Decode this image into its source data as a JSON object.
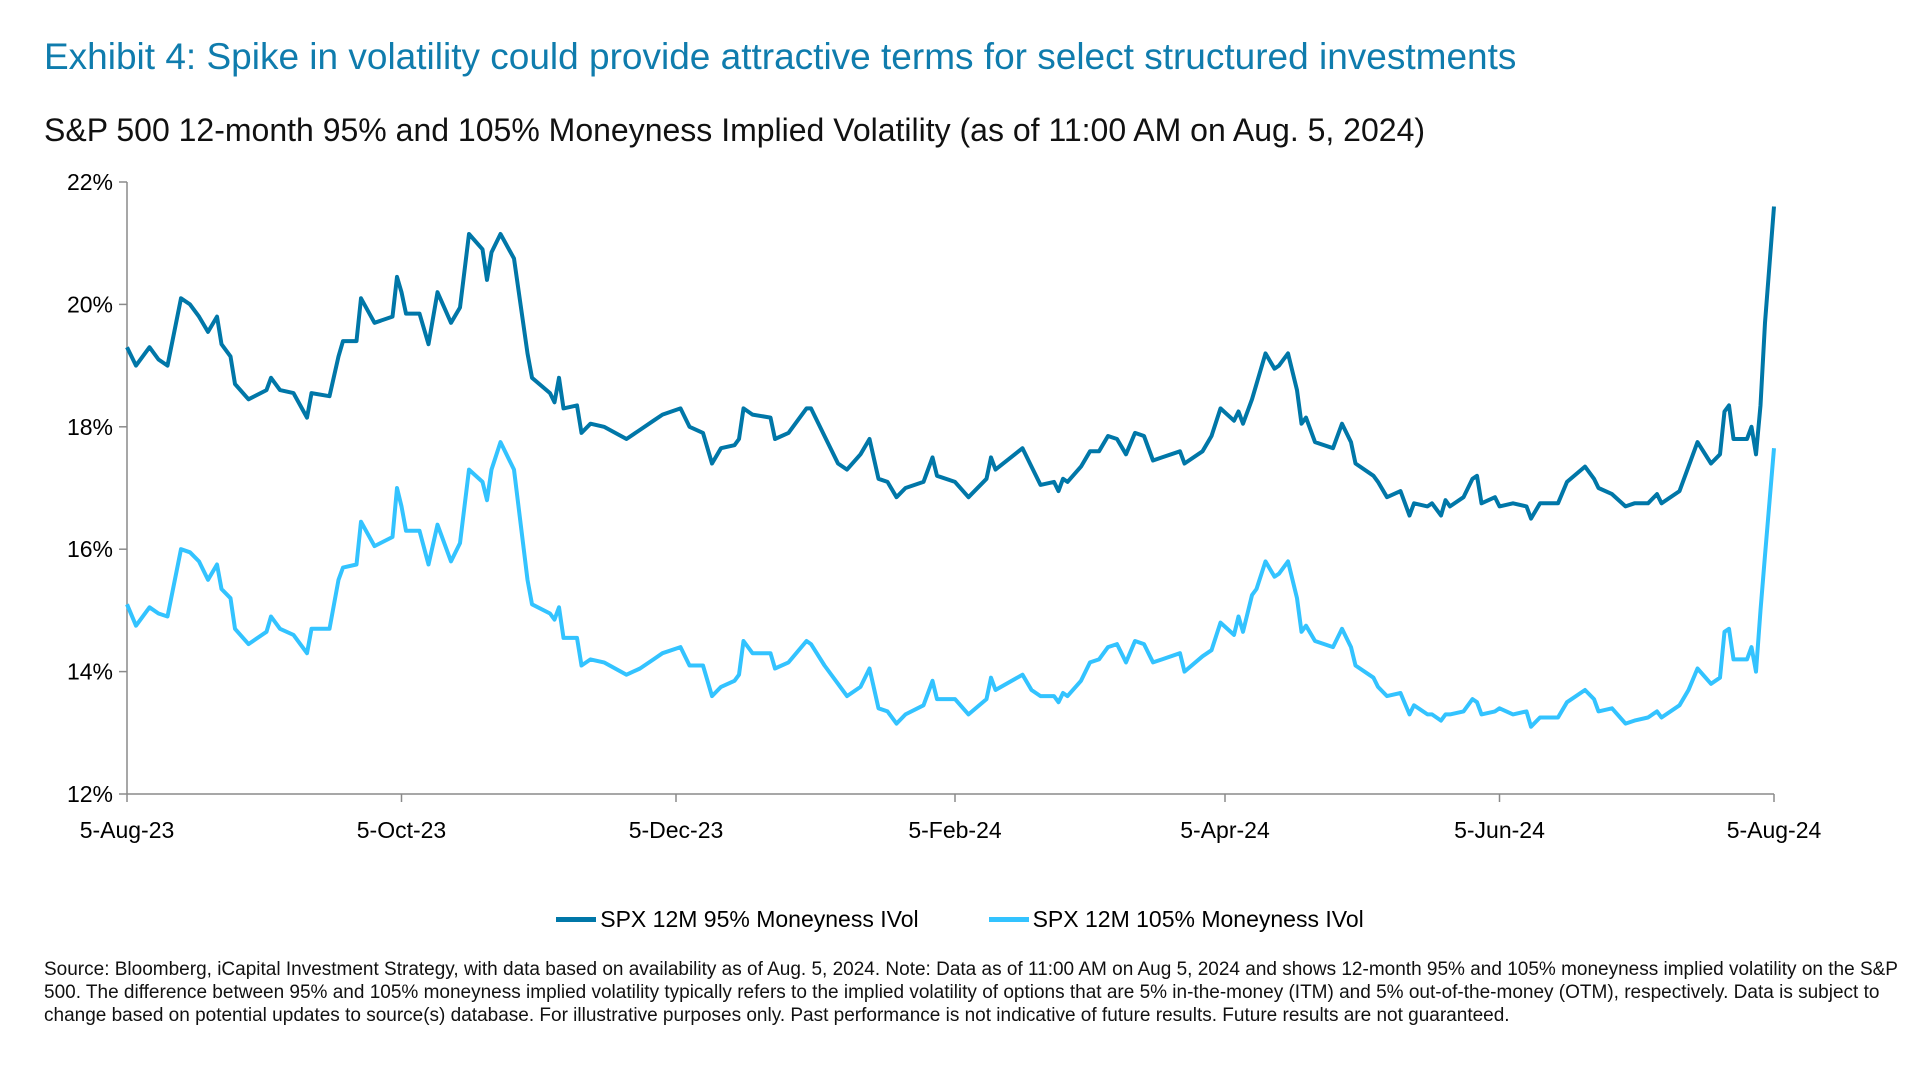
{
  "title": "Exhibit 4: Spike in volatility could provide attractive terms for select structured investments",
  "footer": "Source: Bloomberg, iCapital Investment Strategy, with data based on availability as of Aug. 5, 2024. Note: Data as of 11:00 AM on Aug 5, 2024 and shows 12-month 95% and 105% moneyness implied volatility on the S&P 500. The difference between 95% and 105% moneyness implied volatility typically refers to the implied volatility of options that are 5% in-the-money (ITM) and 5% out-of-the-money (OTM), respectively. Data is subject to change based on potential updates to source(s) database. For illustrative purposes only. Past performance is not indicative of future results. Future results are not guaranteed.",
  "colors": {
    "title": "#0f7cad",
    "series_95": "#0077a8",
    "series_105": "#33c3ff"
  },
  "chart_data": {
    "type": "line",
    "title": "S&P 500 12-month 95% and 105% Moneyness Implied Volatility (as of 11:00 AM on Aug. 5, 2024)",
    "xlabel": "",
    "ylabel": "",
    "xlim": [
      "2023-08-05",
      "2024-08-05"
    ],
    "ylim": [
      12,
      22
    ],
    "y_ticks": [
      "12%",
      "14%",
      "16%",
      "18%",
      "20%",
      "22%"
    ],
    "y_tick_values": [
      12,
      14,
      16,
      18,
      20,
      22
    ],
    "x_ticks": [
      "5-Aug-23",
      "5-Oct-23",
      "5-Dec-23",
      "5-Feb-24",
      "5-Apr-24",
      "5-Jun-24",
      "5-Aug-24"
    ],
    "x_tick_dates": [
      "2023-08-05",
      "2023-10-05",
      "2023-12-05",
      "2024-02-05",
      "2024-04-05",
      "2024-06-05",
      "2024-08-05"
    ],
    "grid": false,
    "legend_position": "bottom",
    "x": [
      "2023-08-05",
      "2023-08-07",
      "2023-08-10",
      "2023-08-12",
      "2023-08-14",
      "2023-08-17",
      "2023-08-19",
      "2023-08-21",
      "2023-08-23",
      "2023-08-25",
      "2023-08-26",
      "2023-08-28",
      "2023-08-29",
      "2023-09-01",
      "2023-09-05",
      "2023-09-06",
      "2023-09-08",
      "2023-09-11",
      "2023-09-14",
      "2023-09-15",
      "2023-09-19",
      "2023-09-21",
      "2023-09-22",
      "2023-09-25",
      "2023-09-26",
      "2023-09-29",
      "2023-10-03",
      "2023-10-04",
      "2023-10-05",
      "2023-10-06",
      "2023-10-09",
      "2023-10-11",
      "2023-10-13",
      "2023-10-16",
      "2023-10-18",
      "2023-10-20",
      "2023-10-23",
      "2023-10-24",
      "2023-10-25",
      "2023-10-27",
      "2023-10-30",
      "2023-11-02",
      "2023-11-03",
      "2023-11-07",
      "2023-11-08",
      "2023-11-09",
      "2023-11-10",
      "2023-11-13",
      "2023-11-14",
      "2023-11-16",
      "2023-11-19",
      "2023-11-24",
      "2023-11-27",
      "2023-11-30",
      "2023-12-02",
      "2023-12-06",
      "2023-12-08",
      "2023-12-11",
      "2023-12-13",
      "2023-12-15",
      "2023-12-18",
      "2023-12-19",
      "2023-12-20",
      "2023-12-22",
      "2023-12-26",
      "2023-12-27",
      "2023-12-30",
      "2024-01-03",
      "2024-01-04",
      "2024-01-07",
      "2024-01-10",
      "2024-01-12",
      "2024-01-15",
      "2024-01-17",
      "2024-01-19",
      "2024-01-21",
      "2024-01-23",
      "2024-01-25",
      "2024-01-29",
      "2024-01-31",
      "2024-02-01",
      "2024-02-05",
      "2024-02-08",
      "2024-02-12",
      "2024-02-13",
      "2024-02-14",
      "2024-02-20",
      "2024-02-22",
      "2024-02-24",
      "2024-02-27",
      "2024-02-28",
      "2024-02-29",
      "2024-03-01",
      "2024-03-04",
      "2024-03-06",
      "2024-03-08",
      "2024-03-10",
      "2024-03-12",
      "2024-03-14",
      "2024-03-16",
      "2024-03-18",
      "2024-03-20",
      "2024-03-22",
      "2024-03-26",
      "2024-03-27",
      "2024-03-31",
      "2024-04-02",
      "2024-04-04",
      "2024-04-07",
      "2024-04-08",
      "2024-04-09",
      "2024-04-11",
      "2024-04-12",
      "2024-04-14",
      "2024-04-16",
      "2024-04-17",
      "2024-04-19",
      "2024-04-21",
      "2024-04-22",
      "2024-04-23",
      "2024-04-25",
      "2024-04-29",
      "2024-05-01",
      "2024-05-03",
      "2024-05-04",
      "2024-05-08",
      "2024-05-09",
      "2024-05-11",
      "2024-05-14",
      "2024-05-16",
      "2024-05-17",
      "2024-05-20",
      "2024-05-21",
      "2024-05-23",
      "2024-05-24",
      "2024-05-25",
      "2024-05-28",
      "2024-05-30",
      "2024-05-31",
      "2024-06-01",
      "2024-06-04",
      "2024-06-05",
      "2024-06-08",
      "2024-06-11",
      "2024-06-12",
      "2024-06-14",
      "2024-06-18",
      "2024-06-20",
      "2024-06-24",
      "2024-06-26",
      "2024-06-27",
      "2024-06-30",
      "2024-07-03",
      "2024-07-05",
      "2024-07-08",
      "2024-07-10",
      "2024-07-11",
      "2024-07-15",
      "2024-07-17",
      "2024-07-19",
      "2024-07-22",
      "2024-07-24",
      "2024-07-25",
      "2024-07-26",
      "2024-07-27",
      "2024-07-30",
      "2024-07-31",
      "2024-08-01",
      "2024-08-02",
      "2024-08-03",
      "2024-08-05"
    ],
    "series": [
      {
        "name": "SPX 12M 95% Moneyness IVol",
        "color": "#0077a8",
        "values": [
          19.3,
          19.0,
          19.3,
          19.1,
          19.0,
          20.1,
          20.0,
          19.8,
          19.55,
          19.8,
          19.35,
          19.15,
          18.7,
          18.45,
          18.6,
          18.8,
          18.6,
          18.55,
          18.15,
          18.55,
          18.5,
          19.15,
          19.4,
          19.4,
          20.1,
          19.7,
          19.8,
          20.45,
          20.2,
          19.85,
          19.85,
          19.35,
          20.2,
          19.7,
          19.95,
          21.15,
          20.9,
          20.4,
          20.85,
          21.15,
          20.75,
          19.2,
          18.8,
          18.55,
          18.4,
          18.8,
          18.3,
          18.35,
          17.9,
          18.05,
          18.0,
          17.8,
          17.95,
          18.1,
          18.2,
          18.3,
          18.0,
          17.9,
          17.4,
          17.65,
          17.7,
          17.8,
          18.3,
          18.2,
          18.15,
          17.8,
          17.9,
          18.3,
          18.3,
          17.85,
          17.4,
          17.3,
          17.55,
          17.8,
          17.15,
          17.1,
          16.85,
          17.0,
          17.1,
          17.5,
          17.2,
          17.1,
          16.85,
          17.15,
          17.5,
          17.3,
          17.65,
          17.35,
          17.05,
          17.1,
          16.95,
          17.15,
          17.1,
          17.35,
          17.6,
          17.6,
          17.85,
          17.8,
          17.55,
          17.9,
          17.85,
          17.45,
          17.5,
          17.6,
          17.4,
          17.6,
          17.85,
          18.3,
          18.1,
          18.25,
          18.05,
          18.45,
          18.7,
          19.2,
          18.95,
          19.0,
          19.2,
          18.6,
          18.05,
          18.15,
          17.75,
          17.65,
          18.05,
          17.75,
          17.4,
          17.2,
          17.1,
          16.85,
          16.95,
          16.55,
          16.75,
          16.7,
          16.75,
          16.55,
          16.8,
          16.7,
          16.85,
          17.15,
          17.2,
          16.75,
          16.85,
          16.7,
          16.75,
          16.7,
          16.5,
          16.75,
          16.75,
          17.1,
          17.35,
          17.15,
          17.0,
          16.9,
          16.7,
          16.75,
          16.75,
          16.9,
          16.75,
          16.95,
          17.35,
          17.75,
          17.4,
          17.55,
          18.25,
          18.35,
          17.8,
          17.8,
          18.0,
          17.55,
          18.35,
          19.7,
          21.6
        ]
      },
      {
        "name": "SPX 12M 105% Moneyness IVol",
        "color": "#33c3ff",
        "values": [
          15.1,
          14.75,
          15.05,
          14.95,
          14.9,
          16.0,
          15.95,
          15.8,
          15.5,
          15.75,
          15.35,
          15.2,
          14.7,
          14.45,
          14.65,
          14.9,
          14.7,
          14.6,
          14.3,
          14.7,
          14.7,
          15.5,
          15.7,
          15.75,
          16.45,
          16.05,
          16.2,
          17.0,
          16.7,
          16.3,
          16.3,
          15.75,
          16.4,
          15.8,
          16.1,
          17.3,
          17.1,
          16.8,
          17.3,
          17.75,
          17.3,
          15.5,
          15.1,
          14.95,
          14.85,
          15.05,
          14.55,
          14.55,
          14.1,
          14.2,
          14.15,
          13.95,
          14.05,
          14.2,
          14.3,
          14.4,
          14.1,
          14.1,
          13.6,
          13.75,
          13.85,
          13.95,
          14.5,
          14.3,
          14.3,
          14.05,
          14.15,
          14.5,
          14.45,
          14.1,
          13.8,
          13.6,
          13.75,
          14.05,
          13.4,
          13.35,
          13.15,
          13.3,
          13.45,
          13.85,
          13.55,
          13.55,
          13.3,
          13.55,
          13.9,
          13.7,
          13.95,
          13.7,
          13.6,
          13.6,
          13.5,
          13.65,
          13.6,
          13.85,
          14.15,
          14.2,
          14.4,
          14.45,
          14.15,
          14.5,
          14.45,
          14.15,
          14.2,
          14.3,
          14.0,
          14.25,
          14.35,
          14.8,
          14.6,
          14.9,
          14.65,
          15.25,
          15.35,
          15.8,
          15.55,
          15.6,
          15.8,
          15.2,
          14.65,
          14.75,
          14.5,
          14.4,
          14.7,
          14.4,
          14.1,
          13.9,
          13.75,
          13.6,
          13.65,
          13.3,
          13.45,
          13.3,
          13.3,
          13.2,
          13.3,
          13.3,
          13.35,
          13.55,
          13.5,
          13.3,
          13.35,
          13.4,
          13.3,
          13.35,
          13.1,
          13.25,
          13.25,
          13.5,
          13.7,
          13.55,
          13.35,
          13.4,
          13.15,
          13.2,
          13.25,
          13.35,
          13.25,
          13.45,
          13.7,
          14.05,
          13.8,
          13.9,
          14.65,
          14.7,
          14.2,
          14.2,
          14.4,
          14.0,
          15.0,
          15.9,
          17.65
        ]
      }
    ]
  }
}
